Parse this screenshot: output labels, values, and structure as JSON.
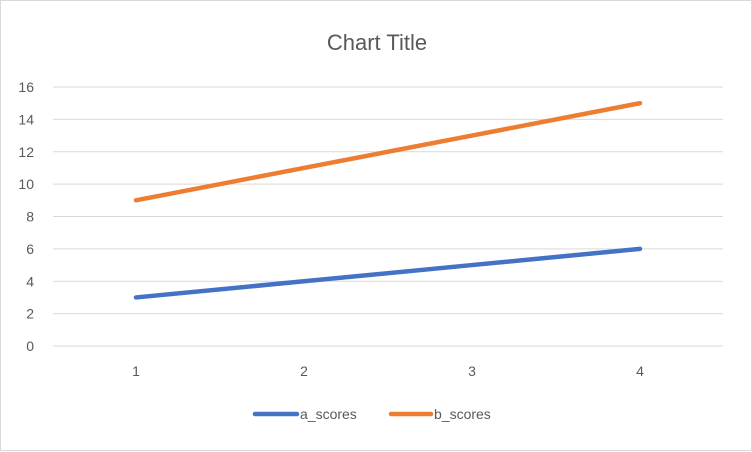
{
  "chart_data": {
    "type": "line",
    "title": "Chart Title",
    "x": [
      1,
      2,
      3,
      4
    ],
    "categories": [
      "1",
      "2",
      "3",
      "4"
    ],
    "ylim": [
      0,
      16
    ],
    "yticks": [
      0,
      2,
      4,
      6,
      8,
      10,
      12,
      14,
      16
    ],
    "grid": true,
    "legend_position": "bottom",
    "series": [
      {
        "name": "a_scores",
        "values": [
          3,
          4,
          5,
          6
        ],
        "color": "#4472C4"
      },
      {
        "name": "b_scores",
        "values": [
          9,
          11,
          13,
          15
        ],
        "color": "#ED7D31"
      }
    ],
    "gridline_color": "#d9d9d9",
    "text_color": "#595959"
  }
}
